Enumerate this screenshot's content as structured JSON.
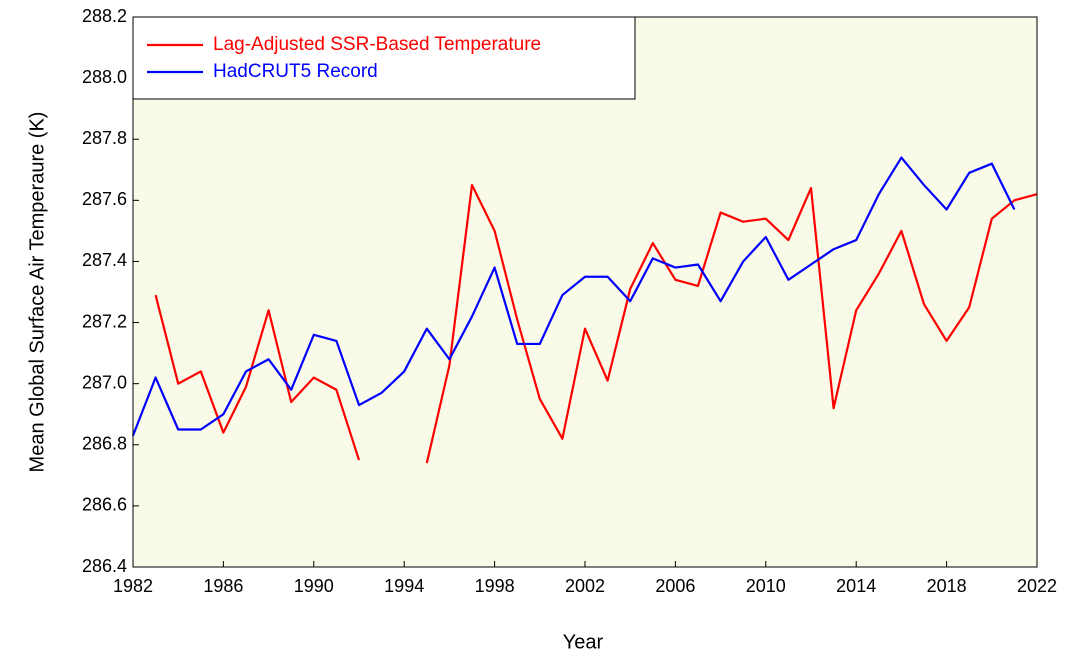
{
  "chart_data": {
    "type": "line",
    "xlabel": "Year",
    "ylabel": "Mean Global Surface Air Temperaure (K)",
    "x": [
      1982,
      1983,
      1984,
      1985,
      1986,
      1987,
      1988,
      1989,
      1990,
      1991,
      1992,
      1993,
      1994,
      1995,
      1996,
      1997,
      1998,
      1999,
      2000,
      2001,
      2002,
      2003,
      2004,
      2005,
      2006,
      2007,
      2008,
      2009,
      2010,
      2011,
      2012,
      2013,
      2014,
      2015,
      2016,
      2017,
      2018,
      2019,
      2020,
      2021,
      2022
    ],
    "series": [
      {
        "name": "Lag-Adjusted SSR-Based Temperature",
        "color": "#ff0000",
        "values": [
          null,
          287.29,
          287.0,
          287.04,
          286.84,
          286.99,
          287.24,
          286.94,
          287.02,
          286.98,
          286.75,
          null,
          null,
          286.74,
          287.06,
          287.65,
          287.5,
          287.21,
          286.95,
          286.82,
          287.18,
          287.01,
          287.31,
          287.46,
          287.34,
          287.32,
          287.56,
          287.53,
          287.54,
          287.47,
          287.64,
          286.92,
          287.24,
          287.36,
          287.5,
          287.26,
          287.14,
          287.25,
          287.54,
          287.6,
          287.62
        ]
      },
      {
        "name": "HadCRUT5 Record",
        "color": "#0000ff",
        "values": [
          286.83,
          287.02,
          286.85,
          286.85,
          286.9,
          287.04,
          287.08,
          286.98,
          287.16,
          287.14,
          286.93,
          286.97,
          287.04,
          287.18,
          287.08,
          287.22,
          287.38,
          287.13,
          287.13,
          287.29,
          287.35,
          287.35,
          287.27,
          287.41,
          287.38,
          287.39,
          287.27,
          287.4,
          287.48,
          287.34,
          287.39,
          287.44,
          287.47,
          287.62,
          287.74,
          287.65,
          287.57,
          287.69,
          287.72,
          287.57,
          null
        ]
      }
    ],
    "xlim": [
      1982,
      2022
    ],
    "xticks": [
      1982,
      1986,
      1990,
      1994,
      1998,
      2002,
      2006,
      2010,
      2014,
      2018,
      2022
    ],
    "ylim": [
      286.4,
      288.2
    ],
    "yticks": [
      286.4,
      286.6,
      286.8,
      {
        "value": 287,
        "label": "287.0"
      },
      287.2,
      287.4,
      287.6,
      287.8,
      {
        "value": 288,
        "label": "288.0"
      },
      288.2
    ],
    "legend": "upper left",
    "background": "#fafae8"
  }
}
